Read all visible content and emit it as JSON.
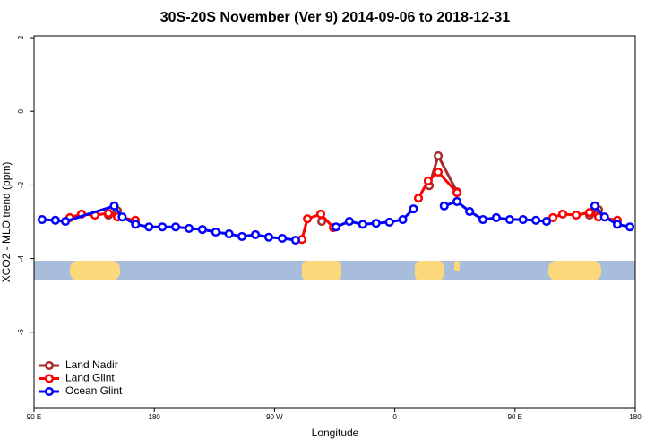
{
  "chart_data": {
    "type": "line",
    "title": "30S-20S November (Ver 9)   2014-09-06 to 2018-12-31",
    "xlabel": "Longitude",
    "ylabel": "XCO2 - MLO trend (ppm)",
    "xlim": [
      90,
      540
    ],
    "ylim": [
      -8.05,
      2.05
    ],
    "xticks": [
      {
        "value": 90,
        "label": "90 E"
      },
      180,
      {
        "value": 270,
        "label": "90 W"
      },
      {
        "value": 360,
        "label": "0"
      },
      {
        "value": 450,
        "label": "90 E"
      },
      {
        "value": 540,
        "label": "180"
      }
    ],
    "yticks": [
      2,
      0,
      -2,
      -4,
      -6
    ],
    "legend": "bottom-left",
    "series": [
      {
        "name": "Land Nadir",
        "color": "#a52a2a",
        "x": [
          145.7,
          152.4,
          null,
          305.3,
          null,
          385.8,
          392.5,
          406.6,
          null,
          505.8,
          512.5
        ],
        "values": [
          -2.82,
          -2.7,
          null,
          -2.99,
          null,
          -2.02,
          -1.21,
          -2.19,
          null,
          -2.82,
          -2.67
        ]
      },
      {
        "name": "Land Glint",
        "color": "#ff0000",
        "x": [
          116.8,
          125.5,
          135.6,
          145.7,
          152.4,
          165.8,
          null,
          290.5,
          294.6,
          304.6,
          314,
          null,
          377.7,
          385,
          392.5,
          406.6,
          null,
          478.3,
          485.7,
          495.8,
          505.8,
          512.5,
          526.6
        ],
        "values": [
          -2.89,
          -2.79,
          -2.82,
          -2.77,
          -2.87,
          -2.96,
          null,
          -3.48,
          -2.92,
          -2.79,
          -3.16,
          null,
          -2.36,
          -1.89,
          -1.65,
          -2.21,
          null,
          -2.89,
          -2.79,
          -2.82,
          -2.75,
          -2.87,
          -2.96
        ]
      },
      {
        "name": "Ocean Glint",
        "color": "#0000ff",
        "x": [
          96,
          106,
          113.5,
          150,
          156,
          166,
          176,
          186,
          196,
          206,
          216,
          226,
          236,
          245.6,
          255.7,
          265.7,
          275.8,
          285.8,
          null,
          316,
          326,
          336,
          346,
          356,
          366,
          374,
          null,
          397,
          406.6,
          416,
          426,
          436,
          446,
          456,
          465.6,
          473.6,
          null,
          509.8,
          517,
          526.6,
          536
        ],
        "values": [
          -2.94,
          -2.96,
          -2.99,
          -2.57,
          -2.87,
          -3.07,
          -3.14,
          -3.14,
          -3.14,
          -3.18,
          -3.21,
          -3.28,
          -3.33,
          -3.4,
          -3.35,
          -3.42,
          -3.45,
          -3.5,
          null,
          -3.14,
          -2.99,
          -3.07,
          -3.04,
          -3.01,
          -2.94,
          -2.65,
          null,
          -2.57,
          -2.45,
          -2.72,
          -2.94,
          -2.89,
          -2.94,
          -2.94,
          -2.96,
          -2.99,
          null,
          -2.57,
          -2.87,
          -3.07,
          -3.14
        ]
      }
    ]
  }
}
